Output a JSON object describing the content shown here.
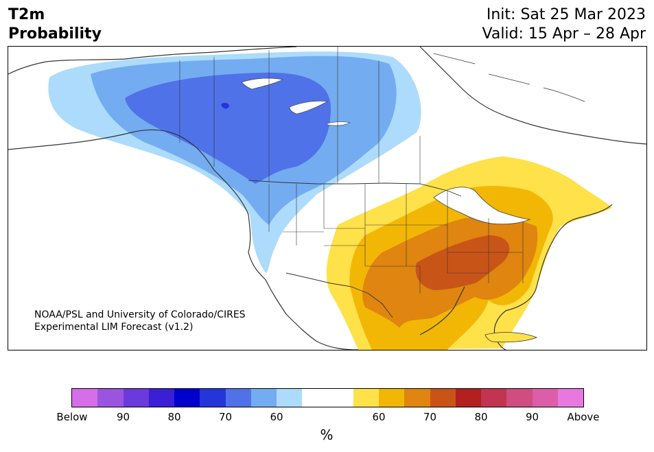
{
  "header": {
    "title_line1": "T2m",
    "title_line2": "Probability",
    "init": "Init: Sat 25 Mar 2023",
    "valid": "Valid: 15 Apr – 28 Apr"
  },
  "credit": {
    "line1": "NOAA/PSL and University of Colorado/CIRES",
    "line2": "Experimental LIM Forecast (v1.2)"
  },
  "colorbar": {
    "colors": [
      "#d66ee8",
      "#9b54e0",
      "#6a3adc",
      "#3a1fd6",
      "#0000cc",
      "#2535dc",
      "#4f72e8",
      "#73acf0",
      "#addbfb",
      "#ffffff",
      "#ffffff",
      "#ffe14a",
      "#f2b705",
      "#df8510",
      "#c95418",
      "#b22020",
      "#c23550",
      "#cf4d80",
      "#dc5ea8",
      "#e878de"
    ],
    "tick_labels": [
      "Below",
      "90",
      "80",
      "70",
      "60",
      "60",
      "70",
      "80",
      "90",
      "Above"
    ],
    "unit": "%"
  },
  "map": {
    "land_color": "#ffffff",
    "border_color": "#333333",
    "below_colors": [
      "#addbfb",
      "#73acf0",
      "#4f72e8",
      "#2535dc"
    ],
    "above_colors": [
      "#ffe14a",
      "#f2b705",
      "#df8510",
      "#c95418"
    ]
  }
}
